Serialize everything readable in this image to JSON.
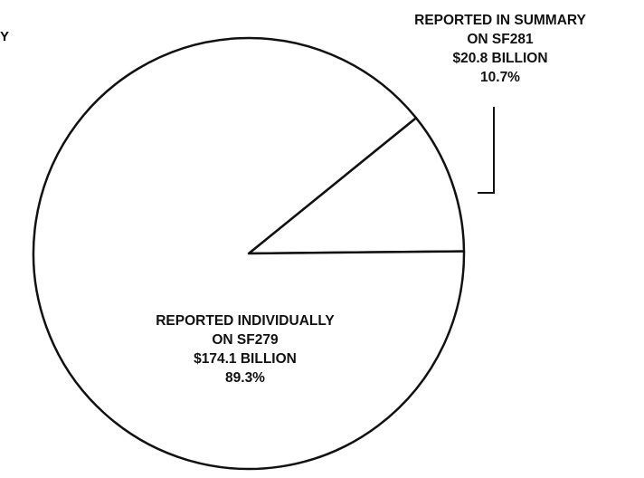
{
  "chart_data": {
    "type": "pie",
    "slices": [
      {
        "key": "summary",
        "value": 20.8,
        "percent": 10.7,
        "label_lines": [
          "REPORTED IN SUMMARY",
          "ON SF281",
          "$20.8 BILLION",
          "10.7%"
        ]
      },
      {
        "key": "individual",
        "value": 174.1,
        "percent": 89.3,
        "label_lines": [
          "REPORTED INDIVIDUALLY",
          "ON SF279",
          "$174.1 BILLION",
          "89.3%"
        ]
      }
    ],
    "colors": {
      "fill": "#ffffff",
      "stroke": "#111111"
    },
    "edge_fragment": "Y"
  }
}
